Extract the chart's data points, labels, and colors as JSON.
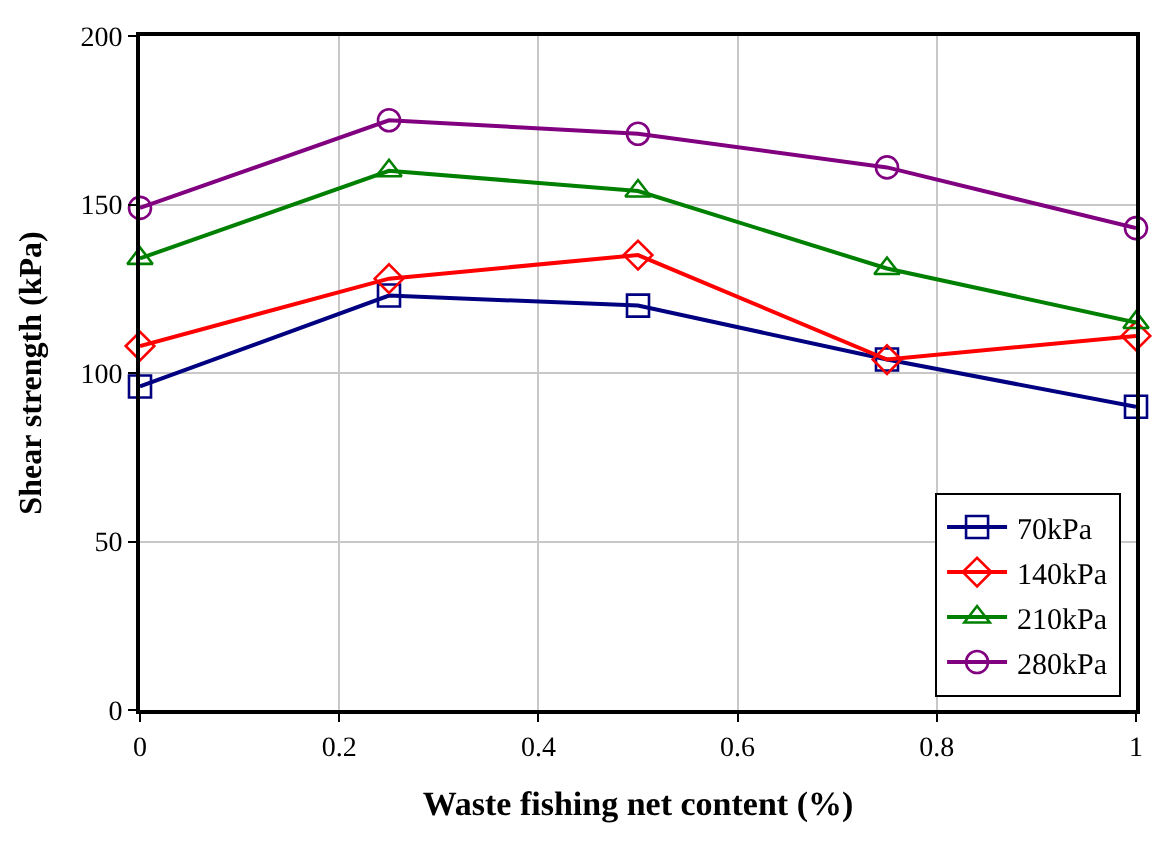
{
  "chart_data": {
    "type": "line",
    "xlabel": "Waste fishing net content (%)",
    "ylabel": "Shear strength (kPa)",
    "x": [
      0,
      0.25,
      0.5,
      0.75,
      1
    ],
    "series": [
      {
        "name": "70kPa",
        "color": "#000080",
        "marker": "square",
        "values": [
          96,
          123,
          120,
          104,
          90
        ]
      },
      {
        "name": "140kPa",
        "color": "#ff0000",
        "marker": "diamond",
        "values": [
          108,
          128,
          135,
          104,
          111
        ]
      },
      {
        "name": "210kPa",
        "color": "#008000",
        "marker": "triangle",
        "values": [
          134,
          160,
          154,
          131,
          115
        ]
      },
      {
        "name": "280kPa",
        "color": "#800080",
        "marker": "circle",
        "values": [
          149,
          175,
          171,
          161,
          143
        ]
      }
    ],
    "xlim": [
      0,
      1
    ],
    "xticks": [
      0,
      0.2,
      0.4,
      0.6,
      0.8,
      1
    ],
    "ylim": [
      0,
      200
    ],
    "yticks": [
      0,
      50,
      100,
      150,
      200
    ],
    "grid": true,
    "legend": "bottom right",
    "line_style": "solid"
  }
}
